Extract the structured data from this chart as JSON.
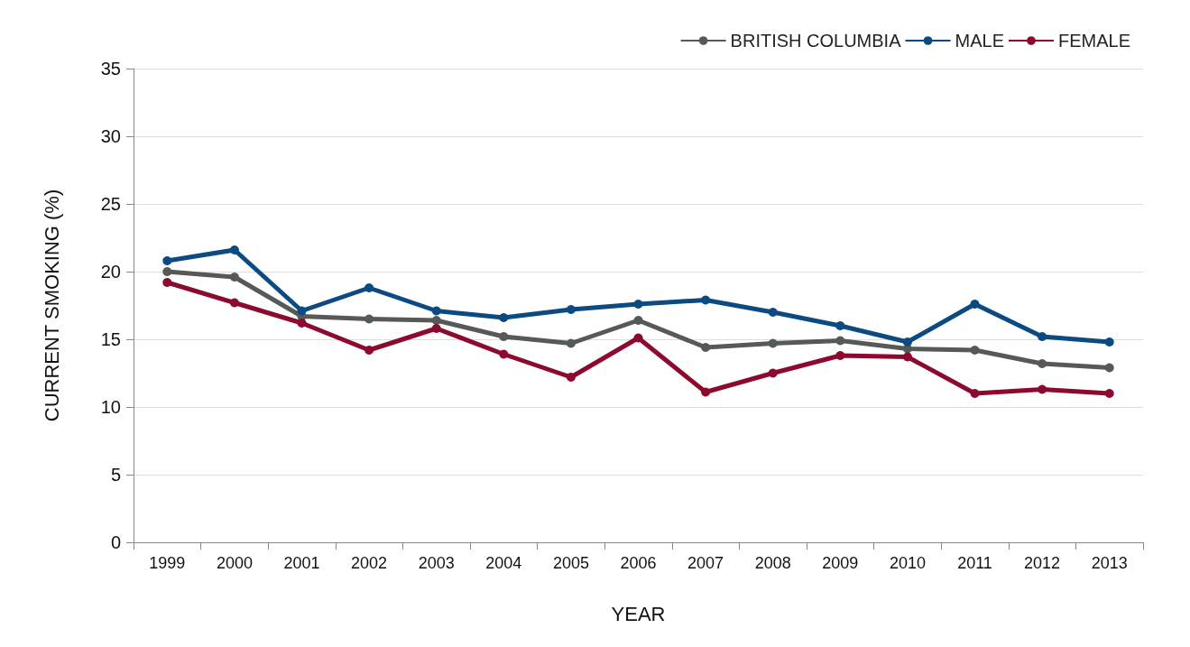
{
  "chart_data": {
    "type": "line",
    "xlabel": "YEAR",
    "ylabel": "CURRENT SMOKING (%)",
    "categories": [
      "1999",
      "2000",
      "2001",
      "2002",
      "2003",
      "2004",
      "2005",
      "2006",
      "2007",
      "2008",
      "2009",
      "2010",
      "2011",
      "2012",
      "2013"
    ],
    "series": [
      {
        "name": "BRITISH COLUMBIA",
        "color": "#555a56",
        "values": [
          20.0,
          19.6,
          16.7,
          16.5,
          16.4,
          15.2,
          14.7,
          16.4,
          14.4,
          14.7,
          14.9,
          14.3,
          14.2,
          13.2,
          12.9
        ]
      },
      {
        "name": "MALE",
        "color": "#0c4a82",
        "values": [
          20.8,
          21.6,
          17.1,
          18.8,
          17.1,
          16.6,
          17.2,
          17.6,
          17.9,
          17.0,
          16.0,
          14.8,
          17.6,
          15.2,
          14.8
        ]
      },
      {
        "name": "FEMALE",
        "color": "#8c0a2e",
        "values": [
          19.2,
          17.7,
          16.2,
          14.2,
          15.8,
          13.9,
          12.2,
          15.1,
          11.1,
          12.5,
          13.8,
          13.7,
          11.0,
          11.3,
          11.0
        ]
      }
    ],
    "ylim": [
      0,
      35
    ],
    "yticks": [
      0,
      5,
      10,
      15,
      20,
      25,
      30,
      35
    ],
    "grid": "y",
    "legend": "top right",
    "marker": "circle",
    "line_style": "solid"
  }
}
